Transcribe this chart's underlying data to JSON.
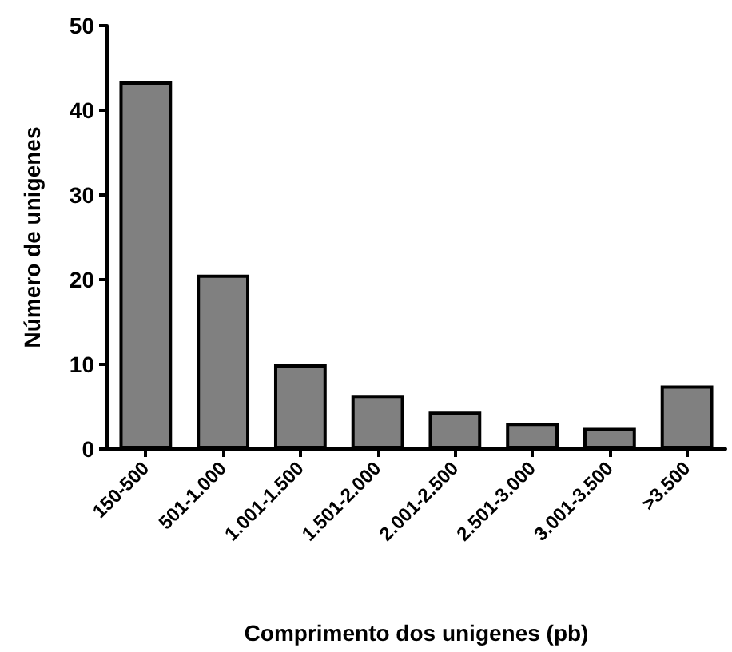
{
  "chart_data": {
    "type": "bar",
    "xlabel": "Comprimento dos unigenes (pb)",
    "ylabel": "Número de unigenes",
    "categories": [
      "150-500",
      "501-1.000",
      "1.001-1.500",
      "1.501-2.000",
      "2.001-2.500",
      "2.501-3.000",
      "3.001-3.500",
      ">3.500"
    ],
    "values": [
      43.4,
      20.6,
      10,
      6.4,
      4.4,
      3.1,
      2.5,
      7.5
    ],
    "color": "#808080",
    "ylim": [
      0,
      50
    ],
    "yticks": [
      0,
      10,
      20,
      30,
      40,
      50
    ],
    "grid": false
  }
}
